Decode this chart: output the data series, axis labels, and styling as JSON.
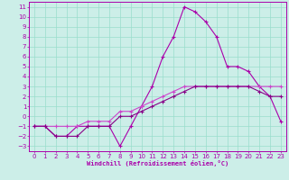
{
  "xlabel": "Windchill (Refroidissement éolien,°C)",
  "background_color": "#cceee8",
  "grid_color": "#99ddcc",
  "line_color_main": "#aa00aa",
  "line_color_upper": "#cc44cc",
  "line_color_lower": "#880088",
  "xlim": [
    -0.5,
    23.5
  ],
  "ylim": [
    -3.5,
    11.5
  ],
  "xticks": [
    0,
    1,
    2,
    3,
    4,
    5,
    6,
    7,
    8,
    9,
    10,
    11,
    12,
    13,
    14,
    15,
    16,
    17,
    18,
    19,
    20,
    21,
    22,
    23
  ],
  "yticks": [
    -3,
    -2,
    -1,
    0,
    1,
    2,
    3,
    4,
    5,
    6,
    7,
    8,
    9,
    10,
    11
  ],
  "curve_max_x": [
    0,
    1,
    2,
    3,
    4,
    5,
    6,
    7,
    8,
    9,
    10,
    11,
    12,
    13,
    14,
    15,
    16,
    17,
    18,
    19,
    20,
    21,
    22,
    23
  ],
  "curve_max_y": [
    -1,
    -1,
    -2,
    -2,
    -1,
    -1,
    -1,
    -1,
    -3,
    -1,
    1,
    3,
    6,
    8,
    11,
    10.5,
    9.5,
    8,
    5,
    5,
    4.5,
    3,
    2,
    -0.5
  ],
  "curve_mean_x": [
    0,
    1,
    2,
    3,
    4,
    5,
    6,
    7,
    8,
    9,
    10,
    11,
    12,
    13,
    14,
    15,
    16,
    17,
    18,
    19,
    20,
    21,
    22,
    23
  ],
  "curve_mean_y": [
    -1,
    -1,
    -1,
    -1,
    -1,
    -0.5,
    -0.5,
    -0.5,
    0.5,
    0.5,
    1,
    1.5,
    2,
    2.5,
    3,
    3,
    3,
    3,
    3,
    3,
    3,
    3,
    3,
    3
  ],
  "curve_min_x": [
    0,
    1,
    2,
    3,
    4,
    5,
    6,
    7,
    8,
    9,
    10,
    11,
    12,
    13,
    14,
    15,
    16,
    17,
    18,
    19,
    20,
    21,
    22,
    23
  ],
  "curve_min_y": [
    -1,
    -1,
    -2,
    -2,
    -2,
    -1,
    -1,
    -1,
    0,
    0,
    0.5,
    1,
    1.5,
    2,
    2.5,
    3,
    3,
    3,
    3,
    3,
    3,
    2.5,
    2,
    2
  ]
}
